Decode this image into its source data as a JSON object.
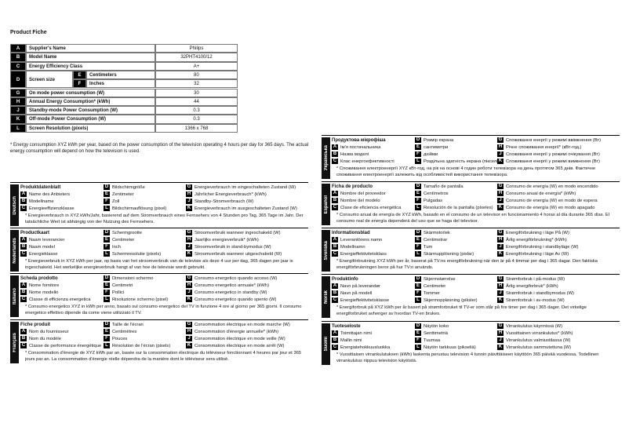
{
  "fiche": {
    "title": "Product Fiche",
    "rows": [
      {
        "letter": "A",
        "label": "Supplier's Name",
        "value": "Philips"
      },
      {
        "letter": "B",
        "label": "Model Name",
        "value": "32PHT4100/12"
      },
      {
        "letter": "C",
        "label": "Energy Efficiency Class",
        "value": "A+"
      },
      {
        "letter": "D",
        "label": "Screen size",
        "sub": [
          {
            "letter": "E",
            "label": "Centimeters",
            "value": 80
          },
          {
            "letter": "F",
            "label": "Inches",
            "value": 32
          }
        ]
      },
      {
        "letter": "G",
        "label": "On mode power consumption (W)",
        "value": 30
      },
      {
        "letter": "H",
        "label": "Annual Energy Consumption* (kWh)",
        "value": 44
      },
      {
        "letter": "J",
        "label": "Standby-mode Power Consumption (W)",
        "value": 0.3
      },
      {
        "letter": "K",
        "label": "Off-mode Power Consumption (W)",
        "value": 0.3
      },
      {
        "letter": "L",
        "label": "Screen Resolution (pixels)",
        "value": "1366 x 768"
      }
    ],
    "footnote": "* Energy consumption XYZ kWh per year, based on the power consumption of the television operating 4 hours per day for 365 days. The actual energy consumption will depend on how the television is used."
  },
  "translations": [
    {
      "language": "Deutsch",
      "title": "Produktdatenblatt",
      "columns": [
        [
          {
            "letter": "A",
            "text": "Name des Anbieters"
          },
          {
            "letter": "B",
            "text": "Modellname"
          },
          {
            "letter": "C",
            "text": "Energieeffizienzklasse"
          }
        ],
        [
          {
            "letter": "D",
            "text": "Bildschirmgröße"
          },
          {
            "letter": "E",
            "text": "Zentimeter"
          },
          {
            "letter": "F",
            "text": "Zoll"
          },
          {
            "letter": "L",
            "text": "Bildschirmauflösung (pixel)"
          }
        ],
        [
          {
            "letter": "G",
            "text": "Energieverbrauch im eingeschalteten Zustand (W)"
          },
          {
            "letter": "H",
            "text": "Jährlicher Energieverbrauch* (kWh)"
          },
          {
            "letter": "J",
            "text": "Standby-Stromverbrauch (W)"
          },
          {
            "letter": "K",
            "text": "Energieverbrauch im ausgeschalteten Zustand (W)"
          }
        ]
      ],
      "note": "* Energieverbrauch in XYZ kWh/Jahr, basierend auf dem Stromverbrauch eines Fernsehers von 4 Stunden pro Tag, 365 Tage im Jahr. Der tatsächliche Wert ist abhängig von der Nutzung des Fernsehers."
    },
    {
      "language": "Nederlands",
      "title": "Productkaart",
      "columns": [
        [
          {
            "letter": "A",
            "text": "Naam leverancier"
          },
          {
            "letter": "B",
            "text": "Naam model"
          },
          {
            "letter": "C",
            "text": "Energieklasse"
          }
        ],
        [
          {
            "letter": "D",
            "text": "Schermgrootte"
          },
          {
            "letter": "E",
            "text": "Centimeter"
          },
          {
            "letter": "F",
            "text": "Inch"
          },
          {
            "letter": "L",
            "text": "Schermresolutie (pixels)"
          }
        ],
        [
          {
            "letter": "G",
            "text": "Stroomverbruik wanneer ingeschakeld (W)"
          },
          {
            "letter": "H",
            "text": "Jaarlijks energieverbruik* (kWh)"
          },
          {
            "letter": "J",
            "text": "Stroomverbruik in stand-bymodus (W)"
          },
          {
            "letter": "K",
            "text": "Stroomverbruik wanneer uitgeschakeld (W)"
          }
        ]
      ],
      "note": "* Energieverbruik in XYZ kWh per jaar, op basis van het stroomverbruik van de televisie als deze 4 uur per dag, 365 dagen per jaar is ingeschakeld. Het werkelijke energieverbruik hangt af van hoe de televisie wordt gebruikt."
    },
    {
      "language": "Italiano",
      "title": "Scheda prodotto",
      "columns": [
        [
          {
            "letter": "A",
            "text": "Nome fornitore"
          },
          {
            "letter": "B",
            "text": "Nome modello"
          },
          {
            "letter": "C",
            "text": "Classe di efficienza energetica"
          }
        ],
        [
          {
            "letter": "D",
            "text": "Dimensioni schermo"
          },
          {
            "letter": "E",
            "text": "Centimetri"
          },
          {
            "letter": "F",
            "text": "Pollici"
          },
          {
            "letter": "L",
            "text": "Risoluzione schermo (pixel)"
          }
        ],
        [
          {
            "letter": "G",
            "text": "Consumo energetico quando acceso (W)"
          },
          {
            "letter": "H",
            "text": "Consumo energetico annuale* (kWh)"
          },
          {
            "letter": "J",
            "text": "Consumo energetico in standby (W)"
          },
          {
            "letter": "K",
            "text": "Consumo energetico quando spento (W)"
          }
        ]
      ],
      "note": "* Consumo energetico XYZ in kWh per anno, basato sul consumo energetico del TV in funzione 4 ore al giorno per 365 giorni. Il consumo energetico effettivo dipende da come viene utilizzato il TV."
    },
    {
      "language": "Français",
      "title": "Fiche produit",
      "columns": [
        [
          {
            "letter": "A",
            "text": "Nom du fournisseur"
          },
          {
            "letter": "B",
            "text": "Nom du modèle"
          },
          {
            "letter": "C",
            "text": "Classe de performance énergétique"
          }
        ],
        [
          {
            "letter": "D",
            "text": "Taille de l'écran"
          },
          {
            "letter": "E",
            "text": "Centimètres"
          },
          {
            "letter": "F",
            "text": "Pouces"
          },
          {
            "letter": "L",
            "text": "Résolution de l'écran (pixels)"
          }
        ],
        [
          {
            "letter": "G",
            "text": "Consommation électrique en mode marche (W)"
          },
          {
            "letter": "H",
            "text": "Consommation d'énergie annuelle* (kWh)"
          },
          {
            "letter": "J",
            "text": "Consommation électrique en mode veille (W)"
          },
          {
            "letter": "K",
            "text": "Consommation électrique en mode arrêt (W)"
          }
        ]
      ],
      "note": "* Consommation d'énergie de XYZ kWh par an, basée sur la consommation électrique du téléviseur fonctionnant 4 heures par jour et 365 jours par an. La consommation d'énergie réelle dépendra de la manière dont le téléviseur sera utilisé."
    },
    {
      "language": "Українська",
      "title": "Продуктова мікрофіша",
      "columns": [
        [
          {
            "letter": "A",
            "text": "Ім'я постачальника"
          },
          {
            "letter": "B",
            "text": "Назва моделі"
          },
          {
            "letter": "C",
            "text": "Клас енергоефективності"
          }
        ],
        [
          {
            "letter": "D",
            "text": "Розмір екрана"
          },
          {
            "letter": "E",
            "text": "сантиметри"
          },
          {
            "letter": "F",
            "text": "дюйми"
          },
          {
            "letter": "L",
            "text": "Роздільна здатність екрана (пікселі)"
          }
        ],
        [
          {
            "letter": "G",
            "text": "Споживання енергії у режимі ввімкнення (Вт)"
          },
          {
            "letter": "H",
            "text": "Річне споживання енергії* (кВт-год.)"
          },
          {
            "letter": "J",
            "text": "Споживання енергії у режимі очікування (Вт)"
          },
          {
            "letter": "K",
            "text": "Споживання енергії у режимі вимкнення (Вт)"
          }
        ]
      ],
      "note": "* Споживання електроенергії XYZ кВт-год. на рік на основі 4 годин роботи телевізора на день протягом 365 днів. Фактичне споживання електроенергії залежить від особливостей використання телевізора."
    },
    {
      "language": "Español",
      "title": "Ficha de producto",
      "columns": [
        [
          {
            "letter": "A",
            "text": "Nombre del proveedor"
          },
          {
            "letter": "B",
            "text": "Nombre del modelo"
          },
          {
            "letter": "C",
            "text": "Clase de eficiencia energética"
          }
        ],
        [
          {
            "letter": "D",
            "text": "Tamaño de pantalla"
          },
          {
            "letter": "E",
            "text": "Centímetros"
          },
          {
            "letter": "F",
            "text": "Pulgadas"
          },
          {
            "letter": "L",
            "text": "Resolución de la pantalla (píxeles)"
          }
        ],
        [
          {
            "letter": "G",
            "text": "Consumo de energía (W) en modo encendido"
          },
          {
            "letter": "H",
            "text": "Consumo anual de energía* (kWh)"
          },
          {
            "letter": "J",
            "text": "Consumo de energía (W) en modo de espera"
          },
          {
            "letter": "K",
            "text": "Consumo de energía (W) en modo apagado"
          }
        ]
      ],
      "note": "* Consumo anual de energía de XYZ kWh, basado en el consumo de un televisor en funcionamiento 4 horas al día durante 365 días. El consumo real de energía dependerá del uso que se haga del televisor."
    },
    {
      "language": "Svenska",
      "title": "Informationsblad",
      "columns": [
        [
          {
            "letter": "A",
            "text": "Leverantörens namn"
          },
          {
            "letter": "B",
            "text": "Modellnamn"
          },
          {
            "letter": "C",
            "text": "Energieffektivitetsklass"
          }
        ],
        [
          {
            "letter": "D",
            "text": "Skärmstorlek"
          },
          {
            "letter": "E",
            "text": "Centimetrar"
          },
          {
            "letter": "F",
            "text": "Tum"
          },
          {
            "letter": "L",
            "text": "Skärmupplösning (pixlar)"
          }
        ],
        [
          {
            "letter": "G",
            "text": "Energiförbrukning i läge På (W)"
          },
          {
            "letter": "H",
            "text": "Årlig energiförbrukning* (kWh)"
          },
          {
            "letter": "J",
            "text": "Energiförbrukning i standbyläge (W)"
          },
          {
            "letter": "K",
            "text": "Energiförbrukning i läge Av (W)"
          }
        ]
      ],
      "note": "* Energiförbrukning XYZ kWh per år, baserat på TV:ns energiförbrukning när den är på 4 timmar per dag i 365 dagar. Den faktiska energiförbrukningen beror på hur TV:n används."
    },
    {
      "language": "Norsk",
      "title": "Produktinfo",
      "columns": [
        [
          {
            "letter": "A",
            "text": "Navn på leverandør"
          },
          {
            "letter": "B",
            "text": "Navn på modell"
          },
          {
            "letter": "C",
            "text": "Energieffektivitetsklasse"
          }
        ],
        [
          {
            "letter": "D",
            "text": "Skjermstørrelse"
          },
          {
            "letter": "E",
            "text": "Centimeter"
          },
          {
            "letter": "F",
            "text": "Tommer"
          },
          {
            "letter": "L",
            "text": "Skjermoppløsning (piksler)"
          }
        ],
        [
          {
            "letter": "G",
            "text": "Strømforbruk i på-modus (W)"
          },
          {
            "letter": "H",
            "text": "Årlig energiforbruk* (kWh)"
          },
          {
            "letter": "J",
            "text": "Strømforbruk i standbymodus (W)"
          },
          {
            "letter": "K",
            "text": "Strømforbruk i av-modus (W)"
          }
        ]
      ],
      "note": "* Energiforbruk på XYZ kWh per år basert på strømforbruket til TV-er som står på fire timer per dag i 365 dager. Det virkelige energiforbruket avhenger av hvordan TV-en brukes."
    },
    {
      "language": "Suomi",
      "title": "Tuoteseloste",
      "columns": [
        [
          {
            "letter": "A",
            "text": "Toimittajan nimi"
          },
          {
            "letter": "B",
            "text": "Mallin nimi"
          },
          {
            "letter": "C",
            "text": "Energiatehokkuusluokka"
          }
        ],
        [
          {
            "letter": "D",
            "text": "Näytön koko"
          },
          {
            "letter": "E",
            "text": "Senttimetriä"
          },
          {
            "letter": "F",
            "text": "Tuumaa"
          },
          {
            "letter": "L",
            "text": "Näytön tarkkuus (pikseliä)"
          }
        ],
        [
          {
            "letter": "G",
            "text": "Virrankulutus käynnissä (W)"
          },
          {
            "letter": "H",
            "text": "Vuosittainen virrankulutus* (kWh)"
          },
          {
            "letter": "J",
            "text": "Virrankulutus valmiustilassa (W)"
          },
          {
            "letter": "K",
            "text": "Virrankulutus sammutettuna (W)"
          }
        ]
      ],
      "note": "* Vuosittaisen virrankulutuksen (kWh) laskenta perustuu television 4 tunnin päivittäiseen käyttöön 365 päivää vuodessa. Todellinen virrankulutus riippuu television käytöstä."
    }
  ]
}
